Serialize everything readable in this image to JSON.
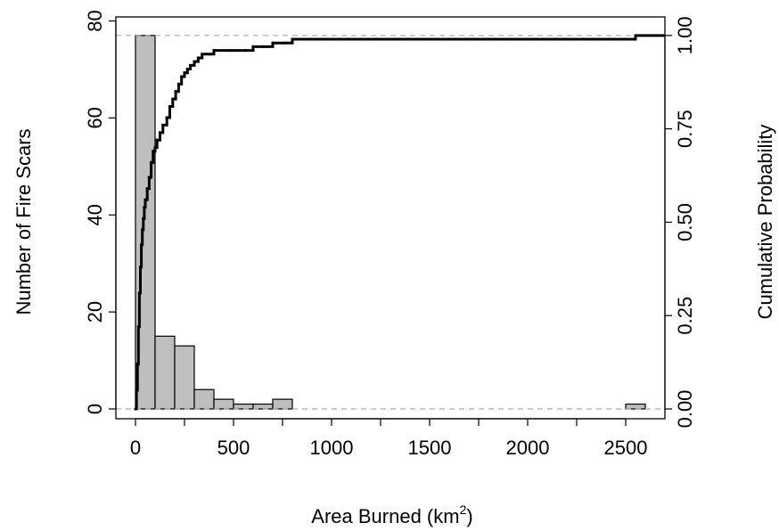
{
  "chart_data": {
    "type": "histogram with cumulative line",
    "xlabel": "Area Burned (km",
    "xlabel_superscript": "2",
    "xlabel_suffix": ")",
    "ylabel_left": "Number of Fire Scars",
    "ylabel_right": "Cumulative Probability",
    "xlim": [
      -100,
      2700
    ],
    "ylim_left": [
      0,
      80
    ],
    "ylim_right": [
      0,
      1
    ],
    "x_ticks": [
      0,
      500,
      1000,
      1500,
      2000,
      2500
    ],
    "y_left_ticks": [
      0,
      20,
      40,
      60,
      80
    ],
    "y_right_ticks": [
      "0.00",
      "0.25",
      "0.50",
      "0.75",
      "1.00"
    ],
    "histogram": {
      "bin_width": 100,
      "bins": [
        {
          "start": -100,
          "count": 0
        },
        {
          "start": 0,
          "count": 77
        },
        {
          "start": 100,
          "count": 15
        },
        {
          "start": 200,
          "count": 13
        },
        {
          "start": 300,
          "count": 4
        },
        {
          "start": 400,
          "count": 2
        },
        {
          "start": 500,
          "count": 1
        },
        {
          "start": 600,
          "count": 1
        },
        {
          "start": 700,
          "count": 2
        },
        {
          "start": 2500,
          "count": 1
        }
      ],
      "bar_color": "#bebebe"
    },
    "reference_lines": [
      0,
      1
    ],
    "cumulative_series": {
      "name": "",
      "x": [
        0,
        5,
        10,
        15,
        20,
        25,
        30,
        35,
        40,
        45,
        50,
        60,
        70,
        80,
        90,
        100,
        110,
        125,
        140,
        160,
        175,
        190,
        205,
        220,
        235,
        250,
        265,
        280,
        300,
        320,
        340,
        380,
        400,
        480,
        560,
        600,
        650,
        700,
        760,
        800,
        1200,
        1800,
        2500,
        2550,
        2700
      ],
      "y": [
        0.0,
        0.05,
        0.12,
        0.22,
        0.31,
        0.38,
        0.44,
        0.48,
        0.51,
        0.54,
        0.56,
        0.59,
        0.62,
        0.66,
        0.69,
        0.7,
        0.72,
        0.74,
        0.76,
        0.78,
        0.81,
        0.83,
        0.85,
        0.87,
        0.89,
        0.9,
        0.91,
        0.92,
        0.93,
        0.94,
        0.95,
        0.95,
        0.96,
        0.96,
        0.96,
        0.97,
        0.97,
        0.98,
        0.98,
        0.99,
        0.99,
        0.99,
        0.99,
        1.0,
        1.0
      ]
    }
  }
}
